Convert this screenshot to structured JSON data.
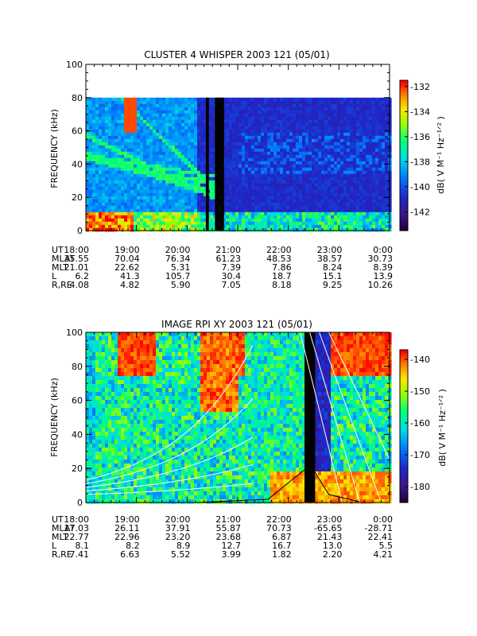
{
  "chart_data": [
    {
      "type": "heatmap",
      "title": "CLUSTER 4 WHISPER 2003 121 (05/01)",
      "ylabel": "FREQUENCY (kHz)",
      "ylim": [
        0,
        100
      ],
      "yticks": [
        "0",
        "20",
        "40",
        "60",
        "80",
        "100"
      ],
      "xticks": [
        "18:00",
        "19:00",
        "20:00",
        "21:00",
        "22:00",
        "23:00",
        "0:00"
      ],
      "colorbar": {
        "label": "dB( V M⁻¹ Hz⁻¹ᐟ² )",
        "ticks": [
          "-132",
          "-134",
          "-136",
          "-138",
          "-140",
          "-142"
        ],
        "range": [
          -143.5,
          -131.5
        ]
      },
      "ephemeris": {
        "rows": [
          {
            "label": "UT",
            "values": [
              "18:00",
              "19:00",
              "20:00",
              "21:00",
              "22:00",
              "23:00",
              "0:00"
            ]
          },
          {
            "label": "MLAT",
            "values": [
              "35.55",
              "70.04",
              "76.34",
              "61.23",
              "48.53",
              "38.57",
              "30.73"
            ]
          },
          {
            "label": "MLT",
            "values": [
              "21.01",
              "22.62",
              "5.31",
              "7.39",
              "7.86",
              "8.24",
              "8.39"
            ]
          },
          {
            "label": "L",
            "values": [
              "6.2",
              "41.3",
              "105.7",
              "30.4",
              "18.7",
              "15.1",
              "13.9"
            ]
          },
          {
            "label": "R,RE",
            "values": [
              "4.08",
              "4.82",
              "5.90",
              "7.05",
              "8.18",
              "9.25",
              "10.26"
            ]
          }
        ]
      },
      "colors": {
        "high": "#ff0000",
        "mid": "#00ff80",
        "low": "#1e1e8c",
        "data_gap": "#000000"
      }
    },
    {
      "type": "heatmap",
      "title": "IMAGE RPI XY 2003 121 (05/01)",
      "ylabel": "FREQUENCY (kHz)",
      "ylim": [
        0,
        100
      ],
      "yticks": [
        "0",
        "20",
        "40",
        "60",
        "80",
        "100"
      ],
      "xticks": [
        "18:00",
        "19:00",
        "20:00",
        "21:00",
        "22:00",
        "23:00",
        "0:00"
      ],
      "colorbar": {
        "label": "dB( V M⁻¹ Hz⁻¹ᐟ² )",
        "ticks": [
          "-140",
          "-150",
          "-160",
          "-170",
          "-180"
        ],
        "range": [
          -185,
          -137
        ]
      },
      "ephemeris": {
        "rows": [
          {
            "label": "UT",
            "values": [
              "18:00",
              "19:00",
              "20:00",
              "21:00",
              "22:00",
              "23:00",
              "0:00"
            ]
          },
          {
            "label": "MLAT",
            "values": [
              "17.03",
              "26.11",
              "37.91",
              "55.87",
              "70.73",
              "-65.65",
              "-28.71"
            ]
          },
          {
            "label": "MLT",
            "values": [
              "22.77",
              "22.96",
              "23.20",
              "23.68",
              "6.87",
              "21.43",
              "22.41"
            ]
          },
          {
            "label": "L",
            "values": [
              "8.1",
              "8.2",
              "8.9",
              "12.7",
              "16.7",
              "13.0",
              "5.5"
            ]
          },
          {
            "label": "R,RE",
            "values": [
              "7.41",
              "6.63",
              "5.52",
              "3.99",
              "1.82",
              "2.20",
              "4.21"
            ]
          }
        ]
      },
      "colors": {
        "high": "#ff0000",
        "mid": "#00ff80",
        "low": "#1e1e8c",
        "data_gap": "#000000"
      }
    }
  ]
}
